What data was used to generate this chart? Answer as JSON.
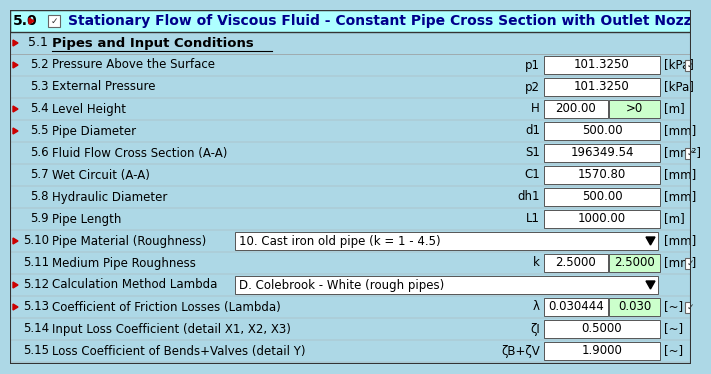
{
  "title": "Stationary Flow of Viscous Fluid - Constant Pipe Cross Section with Outlet Nozzle / Diffuse",
  "title_prefix": "5.0",
  "bg_color": "#ADD8E6",
  "title_bg": "#AEFFFF",
  "white": "#ffffff",
  "green_bg": "#CCFFCC",
  "red": "#CC0000",
  "dark_blue": "#00008B",
  "header_label": "Pipes and Input Conditions",
  "rows": [
    {
      "id": "5.2",
      "label": "Pressure Above the Surface",
      "symbol": "p1",
      "value1": "101.3250",
      "value2": null,
      "unit": "[kPa]",
      "has_checkbox": true,
      "two_value_box": false,
      "dropdown": false,
      "dropdown_text": null,
      "red_marker": true
    },
    {
      "id": "5.3",
      "label": "External Pressure",
      "symbol": "p2",
      "value1": "101.3250",
      "value2": null,
      "unit": "[kPa]",
      "has_checkbox": false,
      "two_value_box": false,
      "dropdown": false,
      "dropdown_text": null,
      "red_marker": false
    },
    {
      "id": "5.4",
      "label": "Level Height",
      "symbol": "H",
      "value1": "200.00",
      "value2": ">0",
      "unit": "[m]",
      "has_checkbox": false,
      "two_value_box": true,
      "dropdown": false,
      "dropdown_text": null,
      "red_marker": true
    },
    {
      "id": "5.5",
      "label": "Pipe Diameter",
      "symbol": "d1",
      "value1": "500.00",
      "value2": null,
      "unit": "[mm]",
      "has_checkbox": false,
      "two_value_box": false,
      "dropdown": false,
      "dropdown_text": null,
      "red_marker": true
    },
    {
      "id": "5.6",
      "label": "Fluid Flow Cross Section (A-A)",
      "symbol": "S1",
      "value1": "196349.54",
      "value2": null,
      "unit": "[mm²]",
      "has_checkbox": true,
      "two_value_box": false,
      "dropdown": false,
      "dropdown_text": null,
      "red_marker": false
    },
    {
      "id": "5.7",
      "label": "Wet Circuit (A-A)",
      "symbol": "C1",
      "value1": "1570.80",
      "value2": null,
      "unit": "[mm]",
      "has_checkbox": false,
      "two_value_box": false,
      "dropdown": false,
      "dropdown_text": null,
      "red_marker": false
    },
    {
      "id": "5.8",
      "label": "Hydraulic Diameter",
      "symbol": "dh1",
      "value1": "500.00",
      "value2": null,
      "unit": "[mm]",
      "has_checkbox": false,
      "two_value_box": false,
      "dropdown": false,
      "dropdown_text": null,
      "red_marker": false
    },
    {
      "id": "5.9",
      "label": "Pipe Length",
      "symbol": "L1",
      "value1": "1000.00",
      "value2": null,
      "unit": "[m]",
      "has_checkbox": false,
      "two_value_box": false,
      "dropdown": false,
      "dropdown_text": null,
      "red_marker": false
    },
    {
      "id": "5.10",
      "label": "Pipe Material (Roughness)",
      "symbol": null,
      "value1": null,
      "value2": null,
      "unit": "[mm]",
      "has_checkbox": false,
      "two_value_box": false,
      "dropdown": true,
      "dropdown_text": "10. Cast iron old pipe (k = 1 - 4.5)",
      "red_marker": true
    },
    {
      "id": "5.11",
      "label": "Medium Pipe Roughness",
      "symbol": "k",
      "value1": "2.5000",
      "value2": "2.5000",
      "unit": "[mm]",
      "has_checkbox": true,
      "two_value_box": true,
      "dropdown": false,
      "dropdown_text": null,
      "red_marker": false
    },
    {
      "id": "5.12",
      "label": "Calculation Method Lambda",
      "symbol": null,
      "value1": null,
      "value2": null,
      "unit": null,
      "has_checkbox": false,
      "two_value_box": false,
      "dropdown": true,
      "dropdown_text": "D. Colebrook - White (rough pipes)",
      "red_marker": true
    },
    {
      "id": "5.13",
      "label": "Coefficient of Friction Losses (Lambda)",
      "symbol": "λ",
      "value1": "0.030444",
      "value2": "0.030",
      "unit": "[~]",
      "has_checkbox": true,
      "two_value_box": true,
      "dropdown": false,
      "dropdown_text": null,
      "red_marker": true
    },
    {
      "id": "5.14",
      "label": "Input Loss Coefficient (detail X1, X2, X3)",
      "symbol": "ζI",
      "value1": "0.5000",
      "value2": null,
      "unit": "[~]",
      "has_checkbox": false,
      "two_value_box": false,
      "dropdown": false,
      "dropdown_text": null,
      "red_marker": false
    },
    {
      "id": "5.15",
      "label": "Loss Coefficient of Bends+Valves (detail Y)",
      "symbol": "ζB+ζV",
      "value1": "1.9000",
      "value2": null,
      "unit": "[~]",
      "has_checkbox": false,
      "two_value_box": false,
      "dropdown": false,
      "dropdown_text": null,
      "red_marker": false
    }
  ]
}
